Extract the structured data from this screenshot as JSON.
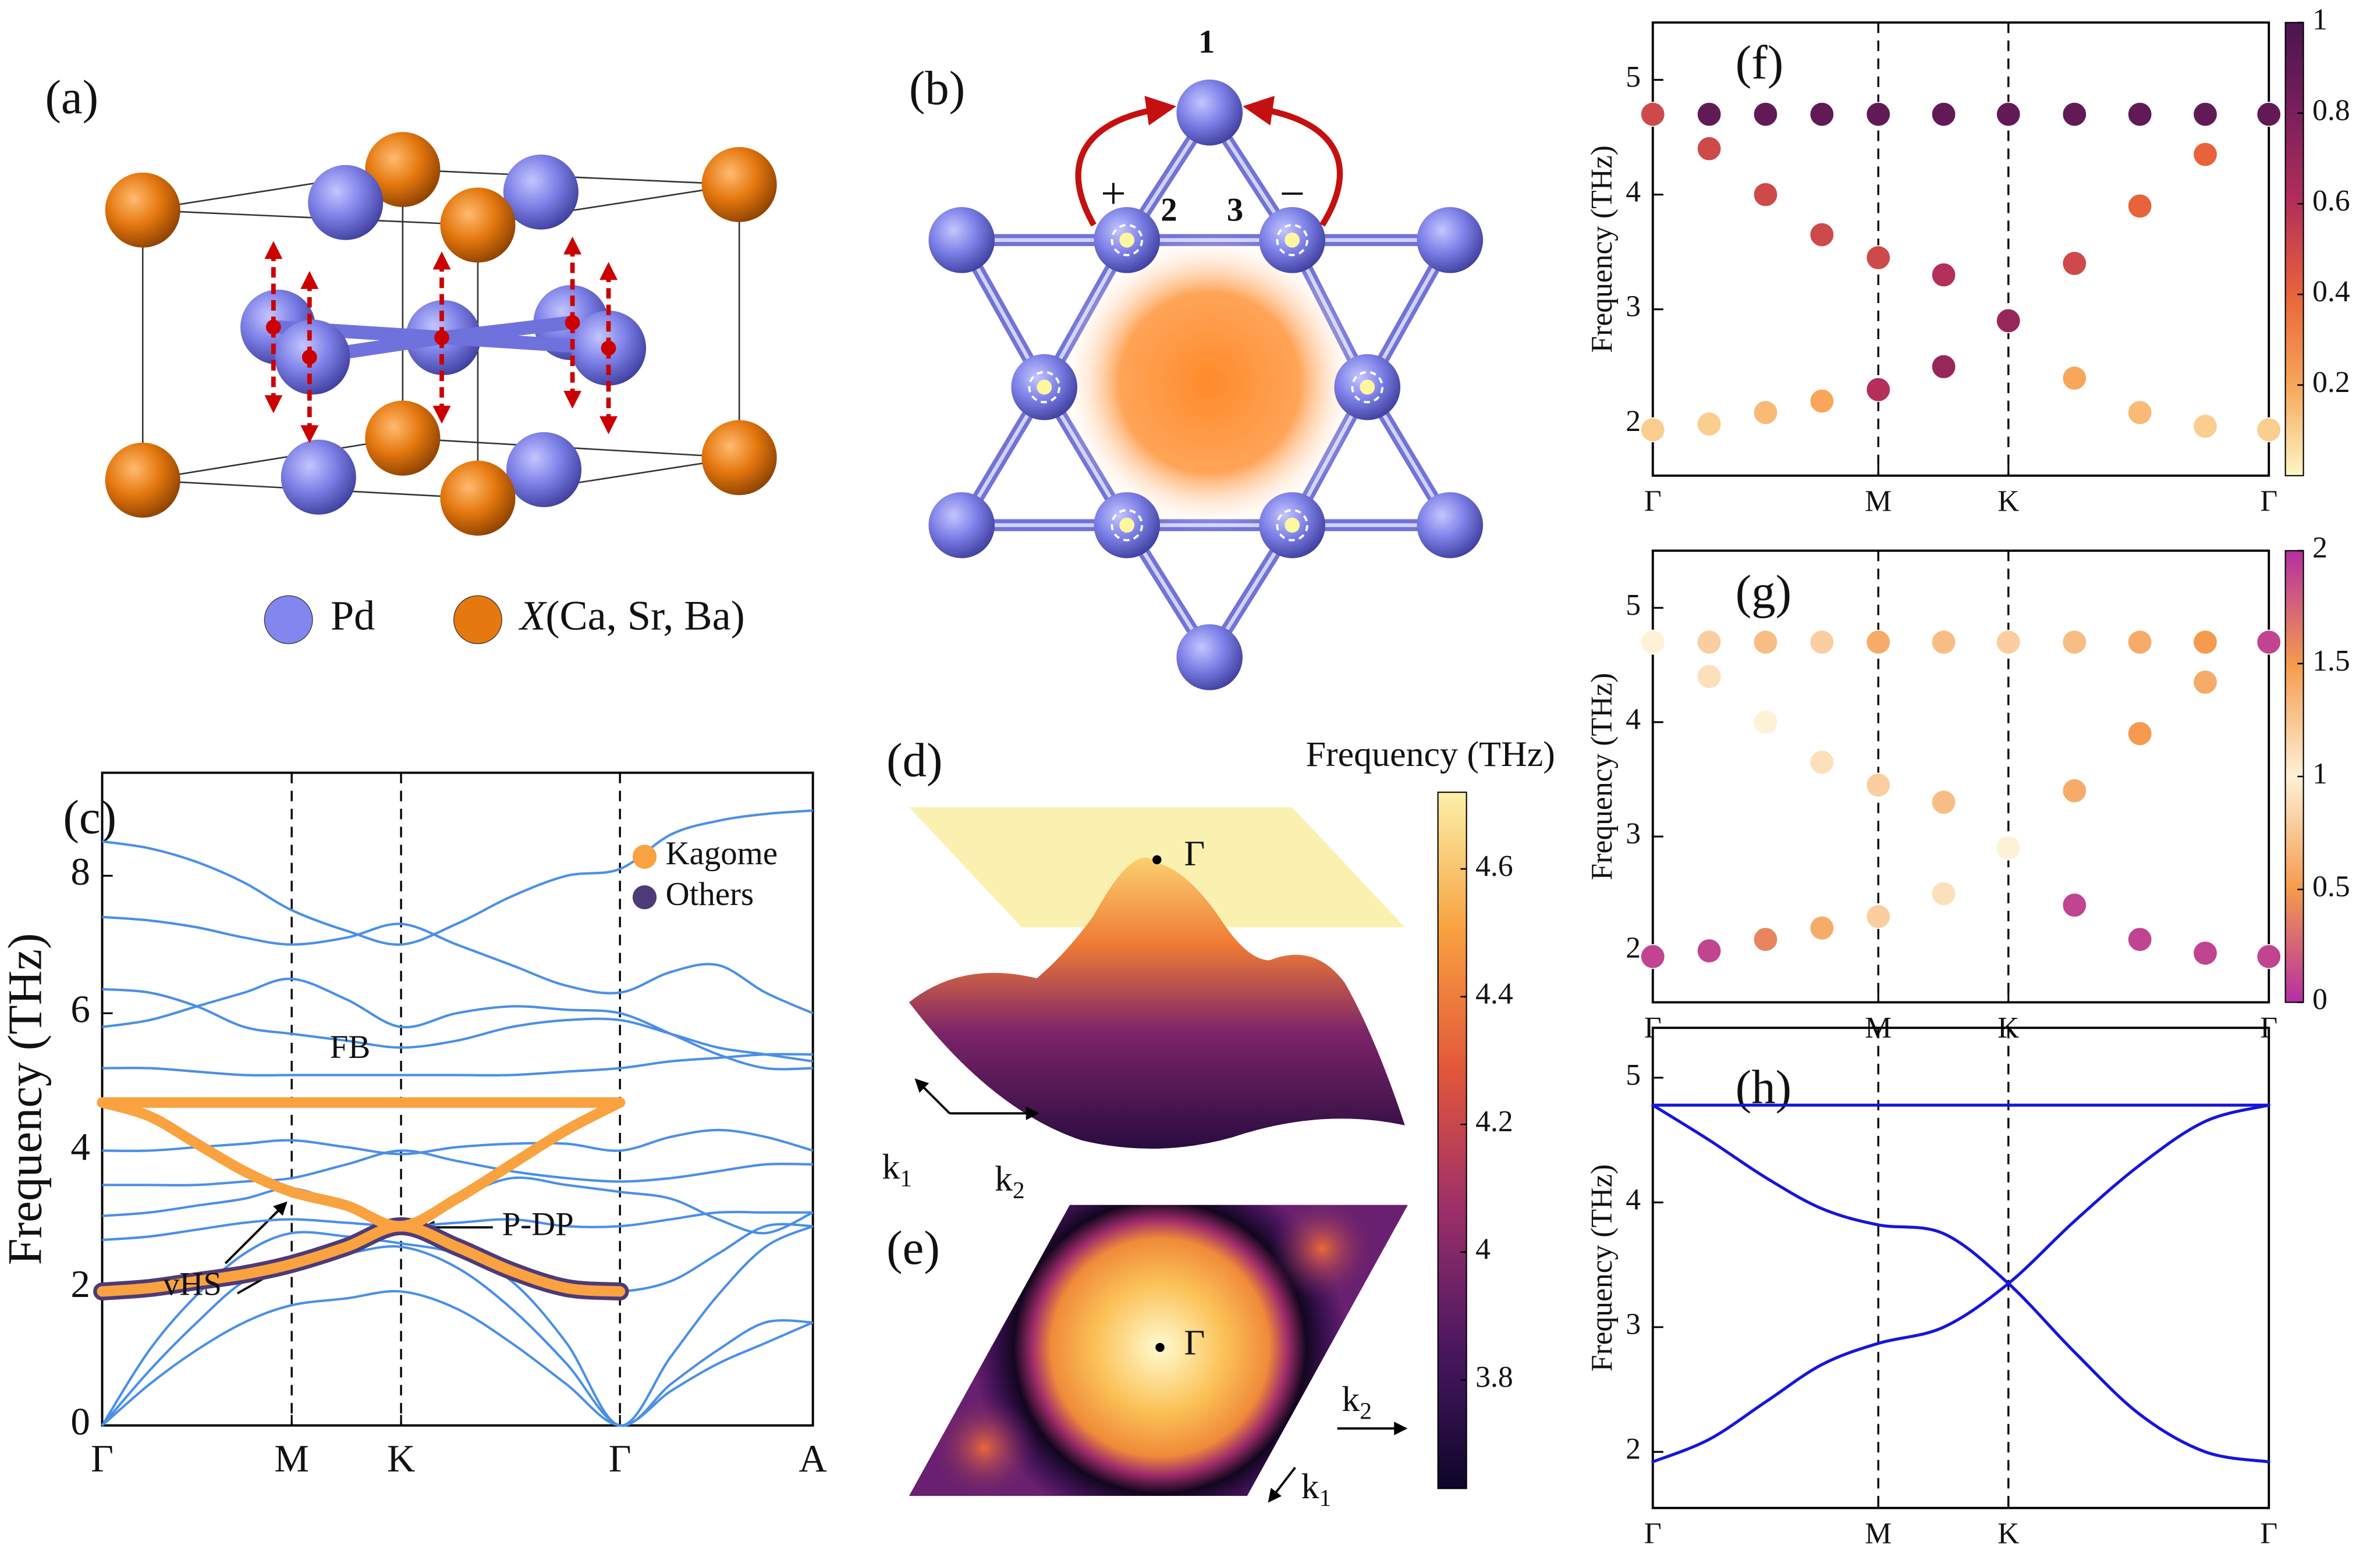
{
  "panel_labels": [
    "(a)",
    "(b)",
    "(c)",
    "(d)",
    "(e)",
    "(f)",
    "(g)",
    "(h)"
  ],
  "structure": {
    "legend": [
      {
        "label": "Pd",
        "color": "#8386ee"
      },
      {
        "symbol": "X",
        "label": "(Ca, Sr, Ba)",
        "color": "#e5780f"
      }
    ]
  },
  "kagome": {
    "sites": [
      "1",
      "2",
      "3"
    ],
    "hopping_signs": [
      "+",
      "−"
    ]
  },
  "chart_data": [
    {
      "type": "line",
      "ylabel": "Frequency (THz)",
      "x": [
        0,
        0.25,
        0.5,
        0.75,
        1,
        1.29,
        1.577,
        1.87,
        2.16,
        2.45,
        2.732,
        3.0,
        3.25,
        3.5,
        3.75
      ],
      "xlim": [
        0,
        3.75
      ],
      "xticks": [
        {
          "value": 0,
          "label": "Γ"
        },
        {
          "value": 1,
          "label": "M"
        },
        {
          "value": 1.577,
          "label": "K"
        },
        {
          "value": 2.732,
          "label": "Γ"
        },
        {
          "value": 3.75,
          "label": "A"
        }
      ],
      "ylim": [
        0,
        9.5
      ],
      "yticks": [
        0,
        2,
        4,
        6,
        8
      ],
      "phonon_bands": {
        "color": "#4a8fe7",
        "bands": [
          [
            0,
            0.6,
            1.1,
            1.5,
            1.75,
            1.85,
            1.95,
            1.7,
            1.2,
            0.6,
            0,
            0.5,
            0.9,
            1.2,
            1.5
          ],
          [
            0,
            0.8,
            1.5,
            2.1,
            2.35,
            2.5,
            2.6,
            2.3,
            1.7,
            0.9,
            0,
            0.6,
            1.1,
            1.5,
            1.5
          ],
          [
            0,
            1.1,
            1.9,
            2.5,
            2.8,
            2.75,
            2.65,
            2.5,
            2.1,
            1.2,
            0,
            1.0,
            1.9,
            2.6,
            2.9
          ],
          [
            1.95,
            2.0,
            2.1,
            2.2,
            2.35,
            2.6,
            2.9,
            2.6,
            2.25,
            2.0,
            1.95,
            2.1,
            2.5,
            2.9,
            2.9
          ],
          [
            2.7,
            2.75,
            2.85,
            2.95,
            3.0,
            2.95,
            2.9,
            2.95,
            3.0,
            2.9,
            2.9,
            3.0,
            3.1,
            3.1,
            3.1
          ],
          [
            3.05,
            3.1,
            3.2,
            3.3,
            3.45,
            3.2,
            2.95,
            3.3,
            3.6,
            3.5,
            3.4,
            3.3,
            3.0,
            2.8,
            3.1
          ],
          [
            3.5,
            3.5,
            3.5,
            3.55,
            3.6,
            3.8,
            4.0,
            3.85,
            3.7,
            3.6,
            3.55,
            3.6,
            3.7,
            3.8,
            3.8
          ],
          [
            4.0,
            4.0,
            4.05,
            4.1,
            4.15,
            4.05,
            3.95,
            4.05,
            4.1,
            4.1,
            4.0,
            4.2,
            4.3,
            4.2,
            4.0
          ],
          [
            5.2,
            5.2,
            5.15,
            5.1,
            5.1,
            5.1,
            5.1,
            5.1,
            5.1,
            5.15,
            5.2,
            5.3,
            5.35,
            5.4,
            5.4
          ],
          [
            5.8,
            5.9,
            6.1,
            6.3,
            6.5,
            6.2,
            5.8,
            6.0,
            6.1,
            6.05,
            6.0,
            5.7,
            5.4,
            5.2,
            5.2
          ],
          [
            6.35,
            6.3,
            6.1,
            5.8,
            5.7,
            5.6,
            5.5,
            5.6,
            5.8,
            5.9,
            5.9,
            5.7,
            5.5,
            5.4,
            5.3
          ],
          [
            7.4,
            7.35,
            7.25,
            7.1,
            7.0,
            7.1,
            7.3,
            7.0,
            6.7,
            6.4,
            6.3,
            6.6,
            6.7,
            6.3,
            6.0
          ],
          [
            8.5,
            8.4,
            8.2,
            7.9,
            7.5,
            7.2,
            7.0,
            7.3,
            7.7,
            8.0,
            8.1,
            8.6,
            8.8,
            8.9,
            8.95
          ]
        ]
      },
      "series": [
        {
          "name": "Kagome",
          "color": "#f9a23f",
          "bands": [
            [
              4.7,
              4.7,
              4.7,
              4.7,
              4.7,
              4.7,
              4.7,
              4.7,
              4.7,
              4.7,
              4.7,
              null,
              null,
              null,
              null
            ],
            [
              4.7,
              4.5,
              4.1,
              3.7,
              3.4,
              3.2,
              2.9,
              3.3,
              3.8,
              4.3,
              4.7,
              null,
              null,
              null,
              null
            ],
            [
              1.95,
              2.0,
              2.1,
              2.2,
              2.35,
              2.6,
              2.9,
              2.6,
              2.25,
              2.0,
              1.95,
              null,
              null,
              null,
              null
            ]
          ]
        },
        {
          "name": "Others",
          "color": "#4d3b78",
          "bands": [
            [
              1.95,
              2.0,
              2.1,
              2.2,
              2.35,
              2.6,
              2.9,
              2.6,
              2.25,
              2.0,
              1.95,
              null,
              null,
              null,
              null
            ]
          ]
        }
      ],
      "annotations": [
        "FB",
        "vHS",
        "P-DP"
      ],
      "legend": "upper right"
    },
    {
      "type": "colorbar",
      "title": "Frequency (THz)",
      "ylim": [
        3.63,
        4.72
      ],
      "yticks": [
        3.8,
        4,
        4.2,
        4.4,
        4.6
      ],
      "colormap": [
        "#0d0629",
        "#4a1760",
        "#9c2f6a",
        "#e2563a",
        "#f8a040",
        "#fbf0a8"
      ],
      "point_label": "Γ",
      "axis_labels": [
        {
          "base": "k",
          "sub": "1"
        },
        {
          "base": "k",
          "sub": "2"
        }
      ]
    },
    {
      "type": "scatter",
      "ylabel": "Frequency (THz)",
      "x": [
        0,
        0.25,
        0.5,
        0.75,
        1,
        1.29,
        1.577,
        1.87,
        2.16,
        2.45,
        2.732
      ],
      "xlim": [
        0,
        2.732
      ],
      "xticks": [
        {
          "value": 0,
          "label": "Γ"
        },
        {
          "value": 1,
          "label": "M"
        },
        {
          "value": 1.577,
          "label": "K"
        },
        {
          "value": 2.732,
          "label": "Γ"
        }
      ],
      "ylim": [
        1.55,
        5.5
      ],
      "yticks": [
        2,
        3,
        4,
        5
      ],
      "series": [
        {
          "values": [
            4.7,
            4.7,
            4.7,
            4.7,
            4.7,
            4.7,
            4.7,
            4.7,
            4.7,
            4.7,
            4.7
          ],
          "weights": [
            0.9,
            0.9,
            0.9,
            0.9,
            0.9,
            0.9,
            0.9,
            0.9,
            0.9,
            0.9,
            0.9
          ]
        },
        {
          "values": [
            4.7,
            4.4,
            4.0,
            3.65,
            3.45,
            3.3,
            2.9,
            2.4,
            2.1,
            1.98,
            1.95
          ],
          "weights": [
            0.5,
            0.5,
            0.5,
            0.5,
            0.5,
            0.6,
            0.7,
            0.2,
            0.15,
            0.1,
            0.1
          ]
        },
        {
          "values": [
            1.95,
            2.0,
            2.1,
            2.2,
            2.3,
            2.5,
            2.9,
            3.4,
            3.9,
            4.35,
            4.7
          ],
          "weights": [
            0.1,
            0.1,
            0.15,
            0.2,
            0.6,
            0.7,
            0.7,
            0.5,
            0.4,
            0.4,
            0.9
          ]
        }
      ],
      "clim": [
        0,
        1
      ],
      "cticks": [
        0.2,
        0.4,
        0.6,
        0.8,
        1
      ],
      "colormap": [
        "#fcf6c4",
        "#f7a65a",
        "#e8633a",
        "#b42f5a",
        "#7a1f5c",
        "#4a1550"
      ]
    },
    {
      "type": "scatter",
      "ylabel": "Frequency (THz)",
      "x": [
        0,
        0.25,
        0.5,
        0.75,
        1,
        1.29,
        1.577,
        1.87,
        2.16,
        2.45,
        2.732
      ],
      "xlim": [
        0,
        2.732
      ],
      "xticks": [
        {
          "value": 0,
          "label": "Γ"
        },
        {
          "value": 1,
          "label": "M"
        },
        {
          "value": 1.577,
          "label": "K"
        },
        {
          "value": 2.732,
          "label": "Γ"
        }
      ],
      "ylim": [
        1.55,
        5.5
      ],
      "yticks": [
        2,
        3,
        4,
        5
      ],
      "series": [
        {
          "values": [
            4.7,
            4.7,
            4.7,
            4.7,
            4.7,
            4.7,
            4.7,
            4.7,
            4.7,
            4.7,
            4.7
          ],
          "weights": [
            1.6,
            1.2,
            1.3,
            1.2,
            1.4,
            1.3,
            1.2,
            1.3,
            1.4,
            1.5,
            1.8
          ]
        },
        {
          "values": [
            4.7,
            4.4,
            4.0,
            3.65,
            3.45,
            3.3,
            2.9,
            2.4,
            2.1,
            1.98,
            1.95
          ],
          "weights": [
            1.0,
            0.9,
            1.0,
            1.1,
            1.2,
            1.3,
            1.5,
            1.9,
            1.9,
            1.9,
            1.9
          ]
        },
        {
          "values": [
            1.95,
            2.0,
            2.1,
            2.2,
            2.3,
            2.5,
            2.9,
            3.4,
            3.9,
            4.35,
            4.7
          ],
          "weights": [
            1.9,
            1.9,
            1.6,
            1.4,
            1.2,
            1.1,
            1.0,
            0.6,
            0.5,
            0.6,
            1.9
          ]
        }
      ],
      "clim": [
        0,
        2
      ],
      "cticks": [
        0,
        0.5,
        1,
        1.5,
        2
      ],
      "colormap": [
        "#b42fa2",
        "#f59a4e",
        "#fdf1d6",
        "#f59a4e",
        "#b42fa2"
      ]
    },
    {
      "type": "line",
      "ylabel": "Frequency (THz)",
      "x": [
        0,
        0.25,
        0.5,
        0.75,
        1,
        1.29,
        1.577,
        1.87,
        2.16,
        2.45,
        2.732
      ],
      "xlim": [
        0,
        2.732
      ],
      "xticks": [
        {
          "value": 0,
          "label": "Γ"
        },
        {
          "value": 1,
          "label": "M"
        },
        {
          "value": 1.577,
          "label": "K"
        },
        {
          "value": 2.732,
          "label": "Γ"
        }
      ],
      "ylim": [
        1.55,
        5.4
      ],
      "yticks": [
        2,
        3,
        4,
        5
      ],
      "series": [
        {
          "color": "#1515dd",
          "bands": [
            [
              4.78,
              4.78,
              4.78,
              4.78,
              4.78,
              4.78,
              4.78,
              4.78,
              4.78,
              4.78,
              4.78
            ],
            [
              4.78,
              4.5,
              4.2,
              3.95,
              3.82,
              3.75,
              3.35,
              2.8,
              2.3,
              2.0,
              1.92
            ],
            [
              1.92,
              2.1,
              2.4,
              2.7,
              2.87,
              3.0,
              3.35,
              3.85,
              4.3,
              4.65,
              4.78
            ]
          ]
        }
      ]
    }
  ]
}
